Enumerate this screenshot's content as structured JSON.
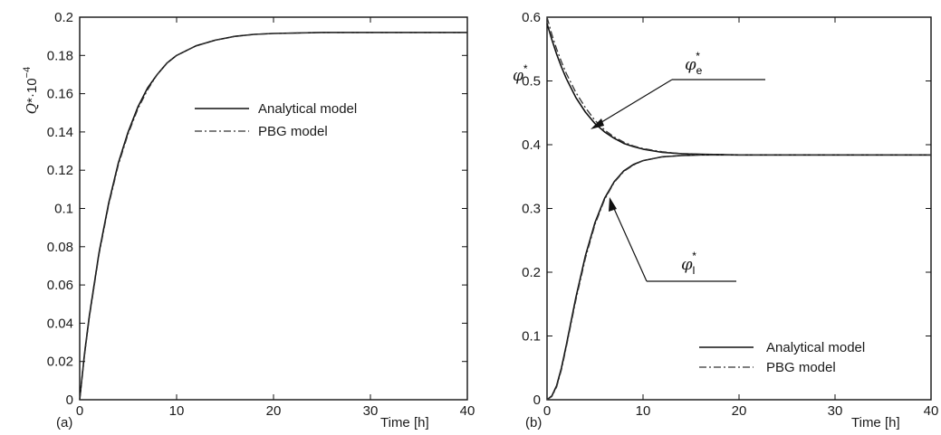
{
  "chart_data": [
    {
      "type": "line",
      "panel_label": "(a)",
      "xlabel": "Time [h]",
      "ylabel_symbol": "Q",
      "ylabel_rest": "*·10",
      "ylabel_exp": "−4",
      "xlim": [
        0,
        40
      ],
      "ylim": [
        0,
        0.2
      ],
      "xticks": [
        "0",
        "10",
        "20",
        "30",
        "40"
      ],
      "yticks": [
        "0",
        "0.02",
        "0.04",
        "0.06",
        "0.08",
        "0.1",
        "0.12",
        "0.14",
        "0.16",
        "0.18",
        "0.2"
      ],
      "grid": false,
      "legend": {
        "placement": "center",
        "entries": [
          {
            "name": "Analytical model",
            "style": "solid"
          },
          {
            "name": "PBG model",
            "style": "dashdot"
          }
        ]
      },
      "series": [
        {
          "name": "Analytical model",
          "style": "solid",
          "x": [
            0,
            0.5,
            1,
            2,
            3,
            4,
            5,
            6,
            7,
            8,
            9,
            10,
            12,
            14,
            16,
            18,
            20,
            25,
            30,
            35,
            40
          ],
          "y": [
            0,
            0.024,
            0.044,
            0.077,
            0.103,
            0.124,
            0.14,
            0.153,
            0.163,
            0.17,
            0.176,
            0.18,
            0.185,
            0.188,
            0.19,
            0.191,
            0.1915,
            0.192,
            0.192,
            0.192,
            0.192
          ]
        },
        {
          "name": "PBG model",
          "style": "dashdot",
          "x": [
            0,
            0.5,
            1,
            2,
            3,
            4,
            5,
            6,
            7,
            8,
            9,
            10,
            12,
            14,
            16,
            18,
            20,
            25,
            30,
            35,
            40
          ],
          "y": [
            0,
            0.023,
            0.043,
            0.076,
            0.102,
            0.123,
            0.139,
            0.152,
            0.162,
            0.17,
            0.176,
            0.18,
            0.185,
            0.188,
            0.19,
            0.191,
            0.1915,
            0.192,
            0.192,
            0.192,
            0.192
          ]
        }
      ]
    },
    {
      "type": "line",
      "panel_label": "(b)",
      "xlabel": "Time [h]",
      "ylabel_symbol": "φ",
      "ylabel_sup": "*",
      "xlim": [
        0,
        40
      ],
      "ylim": [
        0,
        0.6
      ],
      "xticks": [
        "0",
        "10",
        "20",
        "30",
        "40"
      ],
      "yticks": [
        "0",
        "0.1",
        "0.2",
        "0.3",
        "0.4",
        "0.5",
        "0.6"
      ],
      "grid": false,
      "legend": {
        "placement": "bottom-right",
        "entries": [
          {
            "name": "Analytical model",
            "style": "solid"
          },
          {
            "name": "PBG model",
            "style": "dashdot"
          }
        ]
      },
      "annotations": [
        {
          "symbol": "φ",
          "sub": "e",
          "sup": "*",
          "x_target": 5,
          "y_target": 0.415
        },
        {
          "symbol": "φ",
          "sub": "l",
          "sup": "*",
          "x_target": 6.3,
          "y_target": 0.33
        }
      ],
      "series": [
        {
          "name": "Analytical model",
          "group": "e",
          "style": "solid",
          "x": [
            0,
            0.5,
            1,
            1.5,
            2,
            3,
            4,
            5,
            6,
            7,
            8,
            9,
            10,
            12,
            14,
            16,
            20,
            25,
            30,
            35,
            40
          ],
          "y": [
            0.59,
            0.565,
            0.542,
            0.522,
            0.504,
            0.474,
            0.451,
            0.433,
            0.42,
            0.41,
            0.402,
            0.397,
            0.393,
            0.388,
            0.386,
            0.385,
            0.384,
            0.384,
            0.384,
            0.384,
            0.384
          ]
        },
        {
          "name": "PBG model",
          "group": "e",
          "style": "dashdot",
          "x": [
            0,
            0.5,
            1,
            1.5,
            2,
            3,
            4,
            5,
            6,
            7,
            8,
            9,
            10,
            12,
            14,
            16,
            20,
            25,
            30,
            35,
            40
          ],
          "y": [
            0.6,
            0.573,
            0.55,
            0.53,
            0.512,
            0.482,
            0.458,
            0.438,
            0.423,
            0.412,
            0.404,
            0.398,
            0.394,
            0.389,
            0.386,
            0.385,
            0.384,
            0.384,
            0.384,
            0.384,
            0.384
          ]
        },
        {
          "name": "Analytical model",
          "group": "l",
          "style": "solid",
          "x": [
            0,
            0.5,
            1,
            1.5,
            2,
            3,
            4,
            5,
            6,
            7,
            8,
            9,
            10,
            12,
            14,
            16,
            20,
            25,
            30,
            35,
            40
          ],
          "y": [
            0,
            0.006,
            0.022,
            0.05,
            0.085,
            0.16,
            0.226,
            0.278,
            0.316,
            0.342,
            0.359,
            0.369,
            0.375,
            0.381,
            0.383,
            0.384,
            0.384,
            0.384,
            0.384,
            0.384,
            0.384
          ]
        },
        {
          "name": "PBG model",
          "group": "l",
          "style": "dashdot",
          "x": [
            0,
            0.5,
            1,
            1.5,
            2,
            3,
            4,
            5,
            6,
            7,
            8,
            9,
            10,
            12,
            14,
            16,
            20,
            25,
            30,
            35,
            40
          ],
          "y": [
            0,
            0.005,
            0.02,
            0.047,
            0.082,
            0.156,
            0.222,
            0.275,
            0.314,
            0.341,
            0.358,
            0.368,
            0.375,
            0.381,
            0.383,
            0.384,
            0.384,
            0.384,
            0.384,
            0.384,
            0.384
          ]
        }
      ]
    }
  ]
}
